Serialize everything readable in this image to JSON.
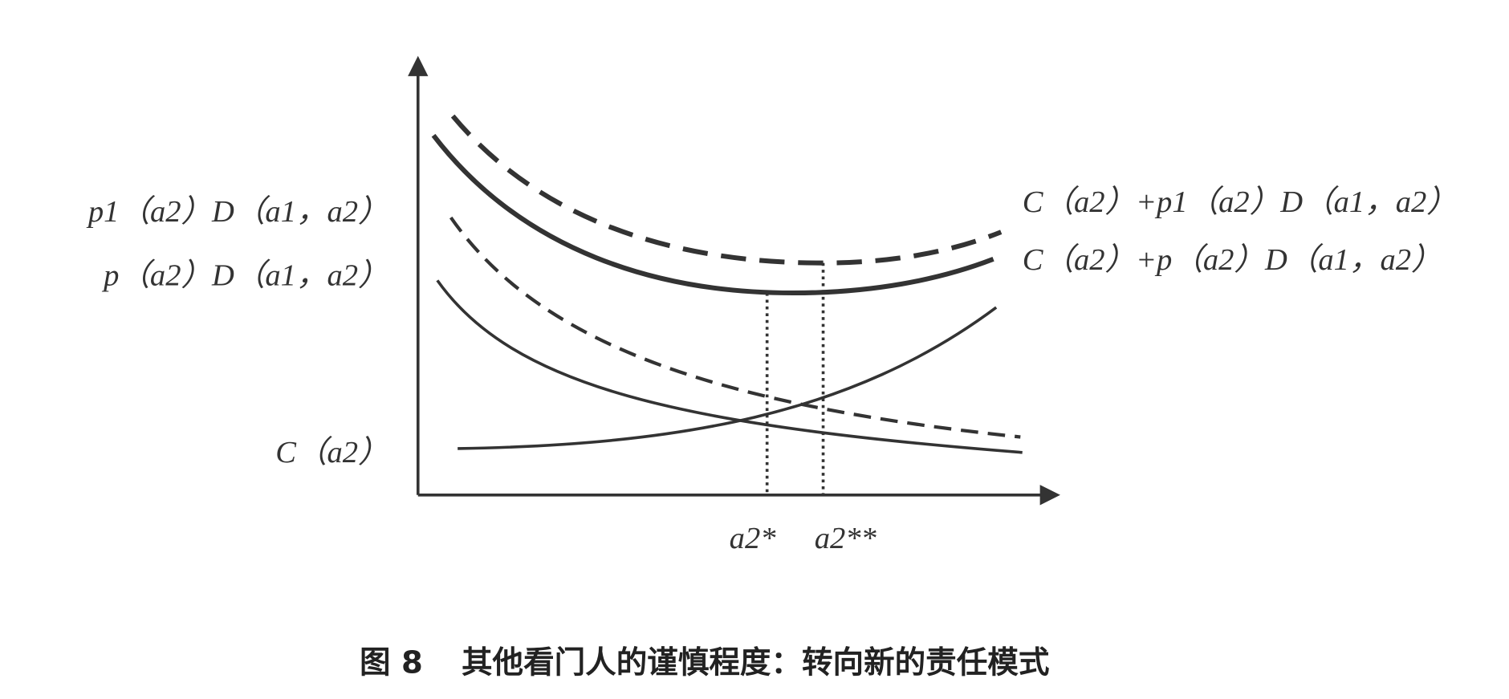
{
  "diagram": {
    "y_labels": [
      "p1（a2）D（a1，a2）",
      "p（a2）D（a1，a2）",
      "C（a2）"
    ],
    "curve_labels": [
      "C（a2）+p1（a2）D（a1，a2）",
      "C（a2）+p（a2）D（a1，a2）"
    ],
    "x_labels": [
      "a2*",
      "a2**"
    ]
  },
  "caption": {
    "label": "图 8",
    "text": "其他看门人的谨慎程度：转向新的责任模式"
  }
}
